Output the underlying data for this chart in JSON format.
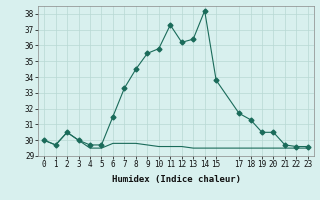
{
  "xlabel": "Humidex (Indice chaleur)",
  "x_main": [
    0,
    1,
    2,
    3,
    4,
    5,
    6,
    7,
    8,
    9,
    10,
    11,
    12,
    13,
    14,
    15,
    17,
    18,
    19,
    20,
    21,
    22,
    23
  ],
  "y_main": [
    30.0,
    29.7,
    30.5,
    30.0,
    29.7,
    29.7,
    31.5,
    33.3,
    34.5,
    35.5,
    35.8,
    37.3,
    36.2,
    36.4,
    38.2,
    33.8,
    31.7,
    31.3,
    30.5,
    30.5,
    29.7,
    29.6,
    29.6
  ],
  "x_flat": [
    0,
    1,
    2,
    3,
    4,
    5,
    6,
    7,
    8,
    9,
    10,
    11,
    12,
    13,
    14,
    15,
    17,
    18,
    19,
    20,
    21,
    22,
    23
  ],
  "y_flat": [
    30.0,
    29.7,
    30.5,
    30.0,
    29.5,
    29.5,
    29.8,
    29.8,
    29.8,
    29.7,
    29.6,
    29.6,
    29.6,
    29.5,
    29.5,
    29.5,
    29.5,
    29.5,
    29.5,
    29.5,
    29.5,
    29.5,
    29.5
  ],
  "line_color": "#1a6b5a",
  "bg_color": "#d8f0ee",
  "grid_color": "#b8d8d4",
  "ylim": [
    29,
    38.5
  ],
  "yticks": [
    29,
    30,
    31,
    32,
    33,
    34,
    35,
    36,
    37,
    38
  ],
  "xticks": [
    0,
    1,
    2,
    3,
    4,
    5,
    6,
    7,
    8,
    9,
    10,
    11,
    12,
    13,
    14,
    15,
    17,
    18,
    19,
    20,
    21,
    22,
    23
  ],
  "tick_fontsize": 5.5,
  "xlabel_fontsize": 6.5
}
